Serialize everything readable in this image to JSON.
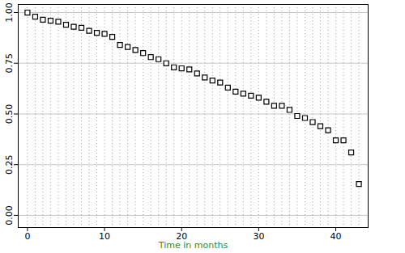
{
  "chart_data": {
    "type": "scatter",
    "x_label": "Time in months",
    "x": [
      0,
      1,
      2,
      3,
      4,
      5,
      6,
      7,
      8,
      9,
      10,
      11,
      12,
      13,
      14,
      15,
      16,
      17,
      18,
      19,
      20,
      21,
      22,
      23,
      24,
      25,
      26,
      27,
      28,
      29,
      30,
      31,
      32,
      33,
      34,
      35,
      36,
      37,
      38,
      39,
      40,
      41,
      42,
      43
    ],
    "values": [
      1.0,
      0.98,
      0.965,
      0.96,
      0.955,
      0.94,
      0.93,
      0.925,
      0.91,
      0.9,
      0.895,
      0.88,
      0.84,
      0.83,
      0.815,
      0.8,
      0.78,
      0.77,
      0.75,
      0.73,
      0.725,
      0.72,
      0.7,
      0.68,
      0.665,
      0.655,
      0.63,
      0.61,
      0.6,
      0.59,
      0.58,
      0.56,
      0.54,
      0.54,
      0.52,
      0.49,
      0.48,
      0.46,
      0.44,
      0.42,
      0.37,
      0.37,
      0.31,
      0.155
    ],
    "xlim": [
      -1.2,
      44.2
    ],
    "ylim": [
      -0.06,
      1.04
    ],
    "xticks": [
      0,
      10,
      20,
      30,
      40
    ],
    "yticks": [
      {
        "value": 0,
        "label": "0.00"
      },
      {
        "value": 0.25,
        "label": "0.25"
      },
      {
        "value": 0.5,
        "label": "0.50"
      },
      {
        "value": 0.75,
        "label": "0.75"
      },
      {
        "value": 1,
        "label": "1.00"
      }
    ],
    "grid": true,
    "marker": "square",
    "color": "#000000"
  }
}
